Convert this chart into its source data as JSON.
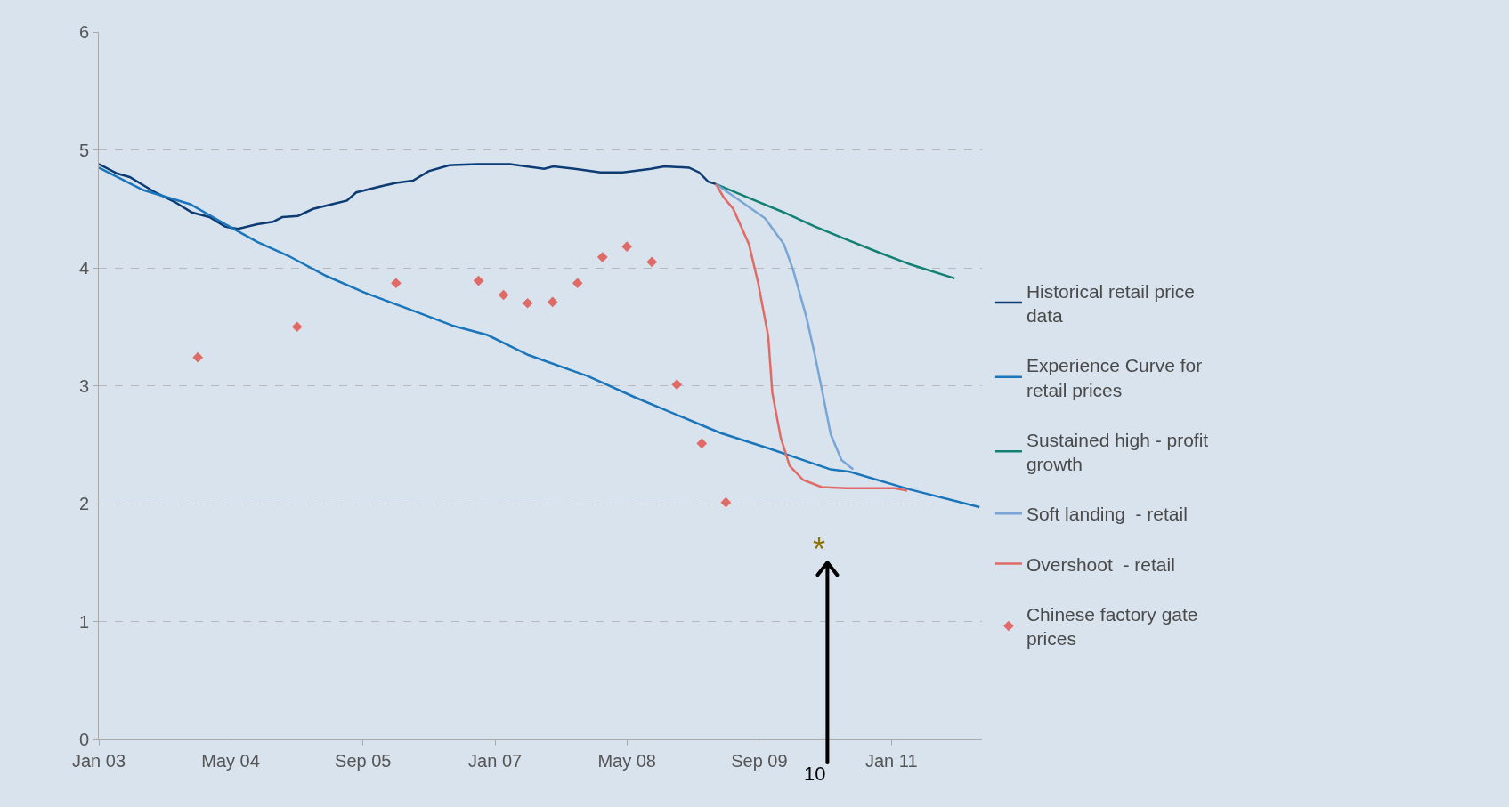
{
  "chart_data": {
    "type": "line",
    "xlim": [
      "2003-01-01",
      "2011-12-01"
    ],
    "xticks": [
      {
        "value": "2003-01-01",
        "label": "Jan 03"
      },
      {
        "value": "2004-05-01",
        "label": "May 04"
      },
      {
        "value": "2005-09-01",
        "label": "Sep 05"
      },
      {
        "value": "2007-01-01",
        "label": "Jan 07"
      },
      {
        "value": "2008-05-01",
        "label": "May 08"
      },
      {
        "value": "2009-09-01",
        "label": "Sep 09"
      },
      {
        "value": "2011-01-01",
        "label": "Jan 11"
      }
    ],
    "ylim": [
      0,
      6
    ],
    "yticks": [
      0,
      1,
      2,
      3,
      4,
      5,
      6
    ],
    "grid": "y",
    "legend": "right",
    "line_style": "solid",
    "annotations": [
      "10",
      "*"
    ],
    "series": [
      {
        "name": "Historical retail price data",
        "color": "#0d3b73",
        "x": [
          "2003-01-01",
          "2003-03-10",
          "2003-04-25",
          "2003-07-28",
          "2003-10-07",
          "2003-12-10",
          "2004-02-13",
          "2004-04-10",
          "2004-05-28",
          "2004-08-07",
          "2004-10-04",
          "2004-11-07",
          "2005-01-04",
          "2005-03-01",
          "2005-05-10",
          "2005-07-04",
          "2005-08-07",
          "2005-11-04",
          "2006-01-01",
          "2006-03-04",
          "2006-05-01",
          "2006-07-16",
          "2006-10-28",
          "2007-02-25",
          "2007-07-01",
          "2007-08-04",
          "2007-10-22",
          "2008-01-25",
          "2008-04-16",
          "2008-07-28",
          "2008-09-16",
          "2008-12-16",
          "2009-01-22",
          "2009-02-25",
          "2009-03-25"
        ],
        "values": [
          4.88,
          4.8,
          4.77,
          4.64,
          4.56,
          4.47,
          4.43,
          4.35,
          4.33,
          4.37,
          4.39,
          4.43,
          4.44,
          4.5,
          4.54,
          4.57,
          4.64,
          4.69,
          4.72,
          4.74,
          4.82,
          4.87,
          4.88,
          4.88,
          4.84,
          4.86,
          4.84,
          4.81,
          4.81,
          4.84,
          4.86,
          4.85,
          4.81,
          4.73,
          4.71
        ]
      },
      {
        "name": "Experience Curve for retail prices",
        "color": "#1a75bb",
        "x": [
          "2003-01-01",
          "2003-06-13",
          "2003-12-04",
          "2004-05-04",
          "2004-08-07",
          "2004-12-01",
          "2005-04-19",
          "2005-09-07",
          "2006-04-04",
          "2006-07-28",
          "2006-12-04",
          "2007-05-04",
          "2007-10-22",
          "2007-12-10",
          "2008-06-01",
          "2009-04-10",
          "2009-10-04",
          "2010-05-22",
          "2010-08-01",
          "2011-03-10",
          "2011-11-22"
        ],
        "values": [
          4.85,
          4.66,
          4.54,
          4.34,
          4.22,
          4.1,
          3.93,
          3.79,
          3.61,
          3.51,
          3.43,
          3.26,
          3.12,
          3.08,
          2.9,
          2.6,
          2.47,
          2.29,
          2.27,
          2.12,
          1.97
        ]
      },
      {
        "name": "Sustained high - profit growth",
        "color": "#138073",
        "x": [
          "2009-03-25",
          "2009-08-07",
          "2009-12-01",
          "2010-03-25",
          "2010-07-19",
          "2010-11-16",
          "2011-03-10",
          "2011-08-22"
        ],
        "values": [
          4.71,
          4.58,
          4.47,
          4.35,
          4.24,
          4.13,
          4.03,
          3.91
        ]
      },
      {
        "name": "Soft landing  - retail",
        "color": "#7aa6d6",
        "x": [
          "2009-03-25",
          "2009-05-28",
          "2009-09-22",
          "2009-12-01",
          "2010-01-04",
          "2010-02-22",
          "2010-03-25",
          "2010-04-25",
          "2010-05-22",
          "2010-07-01",
          "2010-08-13"
        ],
        "values": [
          4.71,
          4.61,
          4.42,
          4.2,
          3.98,
          3.58,
          3.26,
          2.91,
          2.59,
          2.37,
          2.29
        ]
      },
      {
        "name": "Overshoot  - retail",
        "color": "#e06b66",
        "x": [
          "2009-03-25",
          "2009-04-22",
          "2009-05-28",
          "2009-07-25",
          "2009-08-28",
          "2009-10-04",
          "2009-10-19",
          "2009-11-19",
          "2009-12-22",
          "2010-02-10",
          "2010-04-19",
          "2010-07-19",
          "2011-01-13",
          "2011-02-28"
        ],
        "values": [
          4.71,
          4.6,
          4.5,
          4.2,
          3.87,
          3.42,
          2.94,
          2.56,
          2.32,
          2.2,
          2.14,
          2.13,
          2.13,
          2.11
        ]
      },
      {
        "name": "Chinese factory gate prices",
        "type": "scatter",
        "marker": "diamond",
        "color": "#e06b66",
        "x": [
          "2004-01-01",
          "2005-01-01",
          "2006-01-01",
          "2006-11-01",
          "2007-02-01",
          "2007-05-01",
          "2007-08-01",
          "2007-11-01",
          "2008-02-01",
          "2008-05-01",
          "2008-08-01",
          "2008-11-01",
          "2009-02-01",
          "2009-05-01"
        ],
        "values": [
          3.24,
          3.5,
          3.87,
          3.89,
          3.77,
          3.7,
          3.71,
          3.87,
          4.09,
          4.18,
          4.05,
          3.01,
          2.51,
          2.01
        ]
      }
    ]
  }
}
